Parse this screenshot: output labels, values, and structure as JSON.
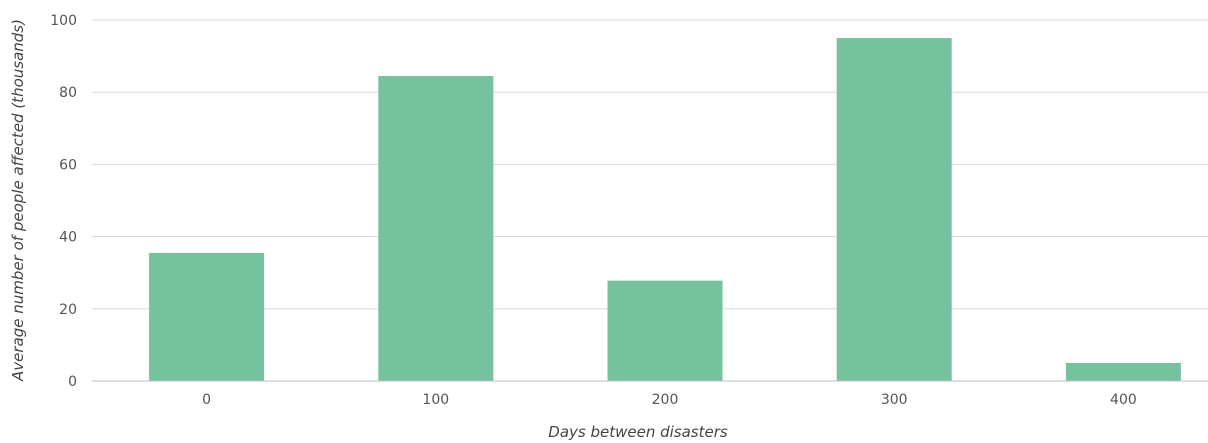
{
  "chart_data": {
    "type": "bar",
    "title": "",
    "xlabel": "Days between disasters",
    "ylabel": "Average number of people affected (thousands)",
    "categories": [
      "0",
      "100",
      "200",
      "300",
      "400"
    ],
    "values": [
      35.5,
      84.5,
      27.8,
      95.0,
      5.0
    ],
    "ylim": [
      0,
      100
    ],
    "yticks": [
      "0",
      "20",
      "40",
      "60",
      "80",
      "100"
    ],
    "grid": true,
    "legend": "none",
    "bar_color": "#76c29e"
  }
}
